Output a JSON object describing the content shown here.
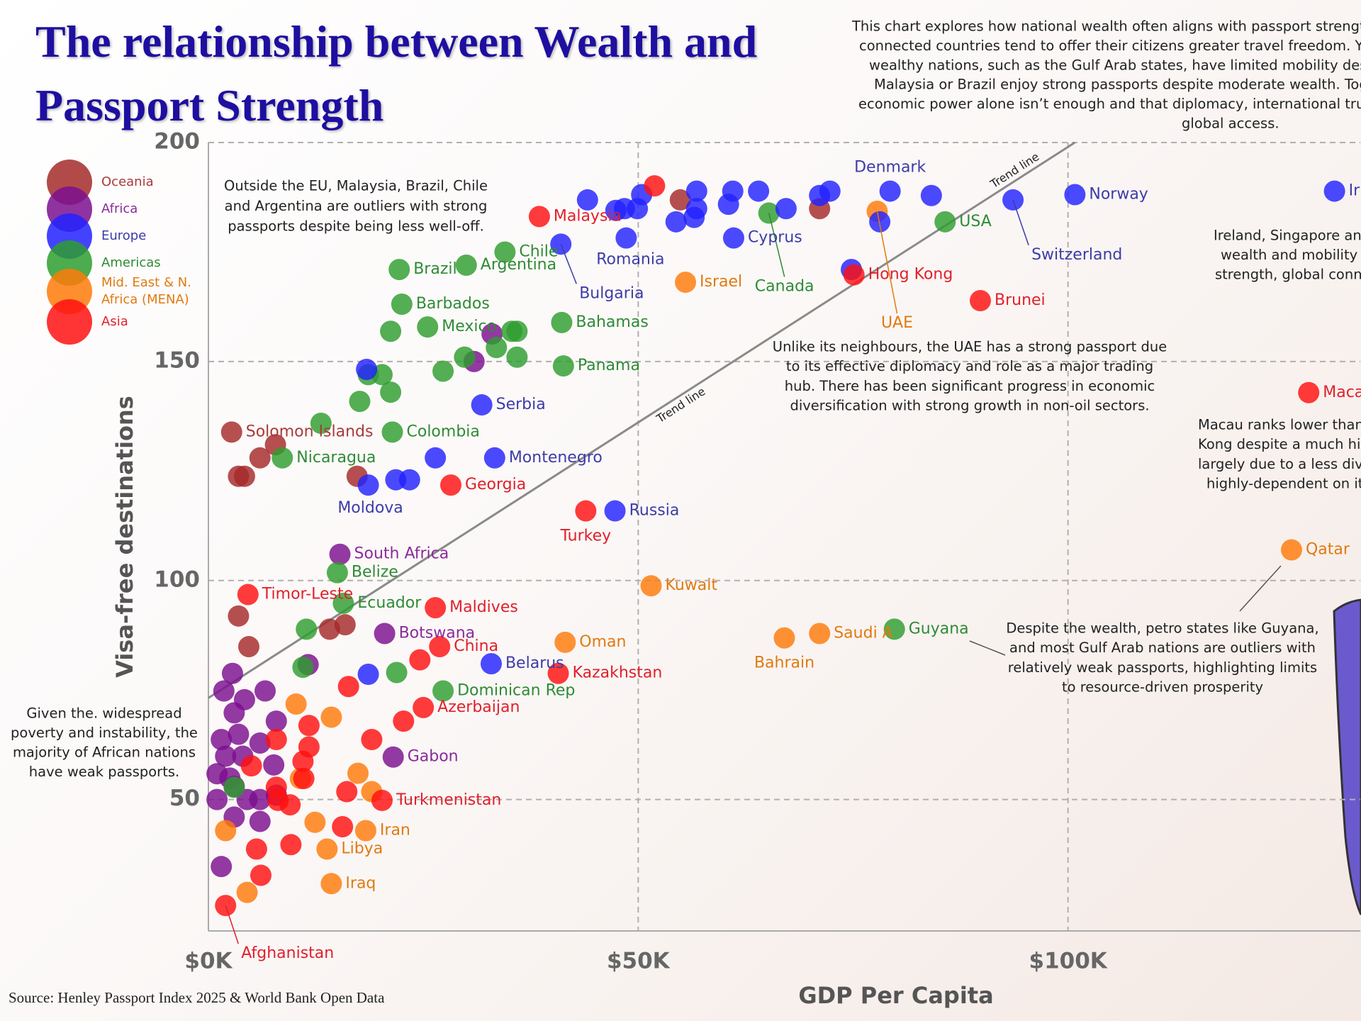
{
  "chart_data": {
    "type": "scatter",
    "title": "The relationship between Wealth and Passport Strength",
    "xlabel": "GDP Per Capita",
    "ylabel": "Visa-free destinations",
    "source": "Source: Henley Passport Index 2025 & World Bank Open Data",
    "xlim": [
      0,
      134000
    ],
    "ylim": [
      20,
      200
    ],
    "xticks": [
      {
        "value": 0,
        "label": "$0K"
      },
      {
        "value": 50000,
        "label": "$50K"
      },
      {
        "value": 100000,
        "label": "$100K"
      }
    ],
    "yticks": [
      50,
      100,
      150,
      200
    ],
    "grid": true,
    "legend": "upper left",
    "trend_line": {
      "label": "Trend line",
      "x": [
        0,
        100800
      ],
      "values": [
        73.2,
        200
      ],
      "color": "#8a8a8a"
    },
    "series": [
      {
        "name": "Oceania",
        "color": "#a52a2a",
        "label_color": "#a83a3a",
        "labels": [
          "Solomon Islands",
          null,
          null,
          null,
          null,
          null,
          null,
          null,
          null,
          null,
          null,
          null
        ],
        "x": [
          2700,
          54900,
          71100,
          6000,
          7800,
          3500,
          4200,
          17300,
          3500,
          4700,
          14100,
          15900
        ],
        "values": [
          133.9,
          186.9,
          184.9,
          128,
          131,
          123.8,
          123.8,
          123.8,
          91.9,
          84.9,
          88.9,
          89.9
        ]
      },
      {
        "name": "Africa",
        "color": "#7b0f8f",
        "label_color": "#8a2b9a",
        "labels": [
          "South Africa",
          "Botswana",
          "Gabon",
          null,
          null,
          null,
          null,
          null,
          null,
          null,
          null,
          null,
          null,
          null,
          null,
          null,
          null,
          null,
          null,
          null,
          null,
          null,
          null,
          null,
          null,
          null,
          null,
          null
        ],
        "x": [
          15300,
          20500,
          21500,
          33000,
          30900,
          2800,
          1800,
          6600,
          4200,
          3000,
          1500,
          7900,
          3500,
          6000,
          2000,
          4000,
          7600,
          1000,
          2500,
          1000,
          4500,
          6000,
          7900,
          3000,
          6000,
          1500,
          11600,
          3000
        ],
        "values": [
          106,
          87.9,
          59.7,
          156.3,
          150,
          78.8,
          74.8,
          74.8,
          72.8,
          69.8,
          63.7,
          67.9,
          64.9,
          62.9,
          59.9,
          59.9,
          57.9,
          55.9,
          54.9,
          50,
          50,
          50,
          51,
          46,
          45,
          34.7,
          80.8,
          53
        ]
      },
      {
        "name": "Americas",
        "color": "#2e9e2e",
        "label_color": "#2e8b35",
        "labels": [
          "USA",
          "Canada",
          "Chile",
          "Argentina",
          "Brazil",
          "Barbados",
          "Mexico",
          "Bahamas",
          "Panama",
          "Colombia",
          "Nicaragua",
          "Belize",
          "Ecuador",
          "Guyana",
          "Dominican Rep",
          null,
          null,
          null,
          null,
          null,
          null,
          null,
          null,
          null,
          null,
          null,
          null,
          null,
          null,
          null,
          null
        ],
        "x": [
          85700,
          65200,
          34500,
          30000,
          22200,
          22500,
          25500,
          41100,
          41300,
          21400,
          8600,
          15000,
          15700,
          79800,
          27300,
          21200,
          33500,
          35900,
          35300,
          35900,
          29800,
          27300,
          20200,
          21200,
          17600,
          13100,
          11400,
          11000,
          21900,
          3000,
          18600
        ],
        "values": [
          181.9,
          183.9,
          175,
          172,
          171,
          163.1,
          157.9,
          158.9,
          149,
          133.9,
          128,
          101.8,
          94.8,
          88.9,
          74.8,
          156.9,
          153.2,
          156.9,
          156.9,
          151,
          151,
          147.8,
          147,
          143,
          140.9,
          135.9,
          88.9,
          80.2,
          79,
          52.8,
          147
        ]
      },
      {
        "name": "Mid. East & N. Africa (MENA)",
        "color": "#ff7a0a",
        "label_color": "#e07a10",
        "labels": [
          "Israel",
          "UAE",
          "Kuwait",
          "Oman",
          "Saudi A",
          "Bahrain",
          "Qatar",
          "Iran",
          "Libya",
          "Iraq",
          null,
          null,
          null,
          null,
          null,
          null,
          null,
          null
        ],
        "x": [
          55500,
          77800,
          51500,
          41500,
          71100,
          67000,
          126000,
          18300,
          13800,
          14300,
          10200,
          14300,
          10700,
          17400,
          19000,
          12400,
          2000,
          4500
        ],
        "values": [
          168.1,
          184.3,
          98.8,
          85.9,
          87.9,
          86.9,
          107,
          42.9,
          38.7,
          30.8,
          71.8,
          68.8,
          54.8,
          56,
          51.8,
          44.8,
          42.9,
          28.8
        ]
      },
      {
        "name": "Europe",
        "color": "#2222ff",
        "label_color": "#3c3ca8",
        "labels": [
          "Norway",
          "Ir",
          "Denmark",
          "Switzerland",
          "Cyprus",
          "Romania",
          "Bulgaria",
          "Serbia",
          "Montenegro",
          "Moldova",
          "Russia",
          "Belarus",
          null,
          null,
          null,
          null,
          null,
          null,
          null,
          null,
          null,
          null,
          null,
          null,
          null,
          null,
          null,
          null,
          null,
          null,
          null,
          null,
          null,
          null,
          null
        ],
        "x": [
          100800,
          131000,
          79300,
          93600,
          61100,
          48600,
          41000,
          31800,
          33300,
          18600,
          47300,
          32900,
          44100,
          47400,
          48400,
          49900,
          50400,
          54400,
          56500,
          56800,
          56800,
          60500,
          61000,
          64000,
          67200,
          71100,
          72300,
          78100,
          84100,
          74800,
          26400,
          21800,
          23400,
          18400,
          18600
        ],
        "values": [
          188.1,
          188.9,
          188.9,
          186.9,
          178.2,
          178.2,
          176.8,
          140.1,
          128,
          121.8,
          115.9,
          81,
          186.9,
          184.5,
          184.9,
          184.9,
          188.1,
          181.9,
          182.9,
          188.9,
          184.9,
          185.9,
          188.9,
          188.9,
          184.9,
          187.9,
          188.9,
          181.9,
          187.9,
          171,
          128,
          123,
          123,
          148.2,
          78.6
        ]
      },
      {
        "name": "Asia",
        "color": "#ff1010",
        "label_color": "#e0202a",
        "labels": [
          "Malaysia",
          "Hong Kong",
          "Brunei",
          "Georgia",
          "Turkey",
          "Timor-Leste",
          "Maldives",
          "China",
          "Kazakhstan",
          "Azerbaijan",
          "Turkmenistan",
          "Afghanistan",
          "Maca",
          null,
          null,
          null,
          null,
          null,
          null,
          null,
          null,
          null,
          null,
          null,
          null,
          null,
          null,
          null,
          null,
          null,
          null,
          null
        ],
        "x": [
          38500,
          75100,
          89800,
          28200,
          43900,
          4600,
          26400,
          26900,
          40700,
          25000,
          20200,
          2000,
          128000,
          51900,
          24600,
          16300,
          22700,
          19000,
          11700,
          11700,
          11000,
          7900,
          5000,
          7900,
          8100,
          16100,
          15600,
          5600,
          9600,
          6100,
          11100,
          9500
        ],
        "values": [
          183.1,
          169.8,
          163.9,
          121.8,
          115.9,
          96.8,
          93.8,
          84.9,
          78.8,
          71,
          49.8,
          25.8,
          142.9,
          190.1,
          81.9,
          75.8,
          67.9,
          63.7,
          66.9,
          62,
          58.7,
          63.7,
          57.7,
          52.8,
          49.8,
          51.8,
          43.8,
          38.7,
          39.7,
          32.7,
          54.8,
          48.8
        ]
      }
    ],
    "annotations": [
      {
        "lines": [
          "This chart explores how national wealth often aligns with passport strength",
          "connected countries tend to offer their citizens greater travel freedom. Ye",
          "wealthy nations, such as the Gulf Arab states, have limited mobility desp",
          "Malaysia or Brazil enjoy strong passports despite moderate wealth. Toge",
          "economic power alone isn’t enough and that diplomacy, international trus",
          "global access."
        ]
      },
      {
        "lines": [
          "Outside the EU, Malaysia, Brazil, Chile",
          "and Argentina are outliers with strong",
          "passports despite being less well-off."
        ]
      },
      {
        "lines": [
          "Unlike its neighbours, the UAE has a strong passport due",
          "to its effective diplomacy and role as a major trading",
          "hub. There has been significant progress in economic",
          "diversification with strong growth in non-oil sectors."
        ]
      },
      {
        "lines": [
          "Ireland, Singapore an",
          "wealth and mobility r",
          "strength, global conne"
        ]
      },
      {
        "lines": [
          "Macau ranks lower than",
          "Kong despite a much hig",
          "largely due to a less dive",
          "highly-dependent on it"
        ]
      },
      {
        "lines": [
          "Despite the wealth, petro states like Guyana,",
          "and most Gulf Arab nations are outliers with",
          "relatively weak passports, highlighting limits",
          "to resource-driven prosperity"
        ]
      },
      {
        "lines": [
          "Given the. widespread",
          "poverty and instability, the",
          "majority of African nations",
          "have weak passports."
        ]
      }
    ]
  }
}
